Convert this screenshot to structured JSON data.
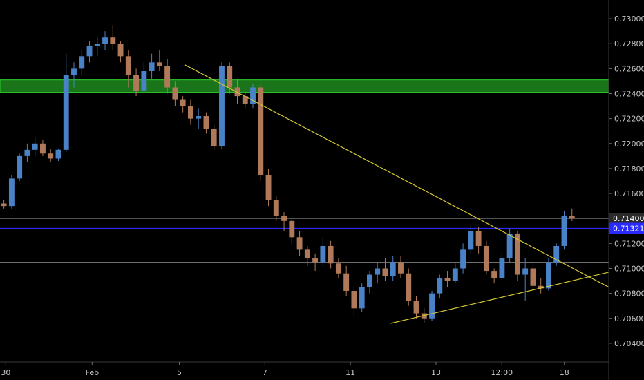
{
  "chart_data": {
    "type": "candlestick",
    "colors": {
      "background": "#000000",
      "up": "#4a82c8",
      "down": "#b07a5a",
      "zone": "#1f8a1f",
      "trendline": "#d4c832",
      "blue_line": "#2a2aff",
      "grey_line": "#6e6e6e",
      "price_label_bg": "#2a2aff",
      "current_label_bg": "#2b2b2b"
    },
    "ylim": [
      0.7025,
      0.7315
    ],
    "xlim": [
      0,
      74
    ],
    "y_ticks": [
      "0.73000",
      "0.72800",
      "0.72600",
      "0.72400",
      "0.72200",
      "0.72000",
      "0.71800",
      "0.71600",
      "0.71400",
      "0.71200",
      "0.71000",
      "0.70800",
      "0.70600",
      "0.70400"
    ],
    "x_ticks": [
      {
        "label": "30",
        "x": 0.7
      },
      {
        "label": "Feb",
        "x": 11.2
      },
      {
        "label": "5",
        "x": 21.8
      },
      {
        "label": "7",
        "x": 32.2
      },
      {
        "label": "11",
        "x": 42.6
      },
      {
        "label": "13",
        "x": 53.0
      },
      {
        "label": "12:00",
        "x": 61.0
      },
      {
        "label": "18",
        "x": 68.6
      }
    ],
    "resistance_zone": [
      0.7241,
      0.7251
    ],
    "horizontal_lines": [
      {
        "value": 0.714,
        "style": "grey"
      },
      {
        "value": 0.71321,
        "style": "blue"
      },
      {
        "value": 0.7105,
        "style": "grey"
      }
    ],
    "trendlines": [
      {
        "from": [
          22.5,
          0.7263
        ],
        "to": [
          74,
          0.7085
        ]
      },
      {
        "from": [
          47.5,
          0.7056
        ],
        "to": [
          74,
          0.7097
        ]
      }
    ],
    "price_labels": [
      {
        "value": "0.71400",
        "y": 0.714,
        "style": "current"
      },
      {
        "value": "0.71321",
        "y": 0.71321,
        "style": "blue"
      }
    ],
    "candles": [
      [
        0.7152,
        0.7155,
        0.7148,
        0.715
      ],
      [
        0.715,
        0.7175,
        0.7148,
        0.7172
      ],
      [
        0.7172,
        0.7192,
        0.717,
        0.719
      ],
      [
        0.719,
        0.72,
        0.7185,
        0.7195
      ],
      [
        0.7195,
        0.7205,
        0.719,
        0.72
      ],
      [
        0.72,
        0.7203,
        0.719,
        0.7192
      ],
      [
        0.7192,
        0.7196,
        0.7185,
        0.7188
      ],
      [
        0.7188,
        0.7196,
        0.7186,
        0.7195
      ],
      [
        0.7195,
        0.7272,
        0.7193,
        0.7255
      ],
      [
        0.7255,
        0.7265,
        0.7245,
        0.726
      ],
      [
        0.726,
        0.7275,
        0.7255,
        0.727
      ],
      [
        0.727,
        0.7282,
        0.7265,
        0.7278
      ],
      [
        0.7278,
        0.7285,
        0.727,
        0.728
      ],
      [
        0.728,
        0.729,
        0.7275,
        0.7285
      ],
      [
        0.7285,
        0.7295,
        0.7275,
        0.728
      ],
      [
        0.728,
        0.7282,
        0.7265,
        0.727
      ],
      [
        0.727,
        0.7275,
        0.7245,
        0.7255
      ],
      [
        0.7255,
        0.726,
        0.7238,
        0.7242
      ],
      [
        0.7242,
        0.7265,
        0.724,
        0.7258
      ],
      [
        0.7258,
        0.7272,
        0.7252,
        0.7265
      ],
      [
        0.7265,
        0.7275,
        0.7258,
        0.7262
      ],
      [
        0.7262,
        0.7268,
        0.724,
        0.7245
      ],
      [
        0.7245,
        0.725,
        0.723,
        0.7235
      ],
      [
        0.7235,
        0.7238,
        0.7225,
        0.723
      ],
      [
        0.723,
        0.7235,
        0.7215,
        0.722
      ],
      [
        0.722,
        0.7228,
        0.7212,
        0.7222
      ],
      [
        0.7222,
        0.7225,
        0.7208,
        0.7212
      ],
      [
        0.7212,
        0.7215,
        0.7195,
        0.7198
      ],
      [
        0.7198,
        0.7265,
        0.7196,
        0.7262
      ],
      [
        0.7262,
        0.7265,
        0.724,
        0.7245
      ],
      [
        0.7245,
        0.7252,
        0.7232,
        0.7238
      ],
      [
        0.7238,
        0.7242,
        0.7228,
        0.7232
      ],
      [
        0.7232,
        0.7248,
        0.7228,
        0.7245
      ],
      [
        0.7245,
        0.7248,
        0.717,
        0.7175
      ],
      [
        0.7175,
        0.718,
        0.715,
        0.7155
      ],
      [
        0.7155,
        0.7158,
        0.7138,
        0.7142
      ],
      [
        0.7142,
        0.7145,
        0.713,
        0.7138
      ],
      [
        0.7138,
        0.714,
        0.712,
        0.7125
      ],
      [
        0.7125,
        0.713,
        0.711,
        0.7115
      ],
      [
        0.7115,
        0.7118,
        0.7102,
        0.7108
      ],
      [
        0.7108,
        0.7112,
        0.7098,
        0.7105
      ],
      [
        0.7105,
        0.7125,
        0.7102,
        0.7118
      ],
      [
        0.7118,
        0.7122,
        0.71,
        0.7104
      ],
      [
        0.7104,
        0.7108,
        0.7092,
        0.7096
      ],
      [
        0.7096,
        0.7102,
        0.7078,
        0.7082
      ],
      [
        0.7082,
        0.7086,
        0.7062,
        0.7068
      ],
      [
        0.7068,
        0.7088,
        0.7065,
        0.7085
      ],
      [
        0.7085,
        0.7098,
        0.708,
        0.7095
      ],
      [
        0.7095,
        0.7105,
        0.7088,
        0.71
      ],
      [
        0.71,
        0.7108,
        0.709,
        0.7094
      ],
      [
        0.7094,
        0.711,
        0.709,
        0.7105
      ],
      [
        0.7105,
        0.711,
        0.7092,
        0.7096
      ],
      [
        0.7096,
        0.71,
        0.707,
        0.7074
      ],
      [
        0.7074,
        0.7078,
        0.706,
        0.7064
      ],
      [
        0.7064,
        0.7068,
        0.7056,
        0.706
      ],
      [
        0.706,
        0.7082,
        0.7058,
        0.708
      ],
      [
        0.708,
        0.7095,
        0.7076,
        0.7092
      ],
      [
        0.7092,
        0.7098,
        0.7085,
        0.709
      ],
      [
        0.709,
        0.7104,
        0.7088,
        0.71
      ],
      [
        0.71,
        0.712,
        0.7096,
        0.7115
      ],
      [
        0.7115,
        0.7135,
        0.7112,
        0.713
      ],
      [
        0.713,
        0.7133,
        0.7112,
        0.7118
      ],
      [
        0.7118,
        0.7122,
        0.7095,
        0.7098
      ],
      [
        0.7098,
        0.71,
        0.7088,
        0.7092
      ],
      [
        0.7092,
        0.7112,
        0.709,
        0.7108
      ],
      [
        0.7108,
        0.7132,
        0.7105,
        0.7128
      ],
      [
        0.7128,
        0.713,
        0.709,
        0.7095
      ],
      [
        0.7095,
        0.7108,
        0.7074,
        0.71
      ],
      [
        0.71,
        0.7106,
        0.7082,
        0.7086
      ],
      [
        0.7086,
        0.7092,
        0.708,
        0.7084
      ],
      [
        0.7084,
        0.7108,
        0.7082,
        0.7105
      ],
      [
        0.7105,
        0.712,
        0.7102,
        0.7118
      ],
      [
        0.7118,
        0.7146,
        0.7115,
        0.7142
      ],
      [
        0.7142,
        0.7148,
        0.7138,
        0.714
      ]
    ]
  }
}
